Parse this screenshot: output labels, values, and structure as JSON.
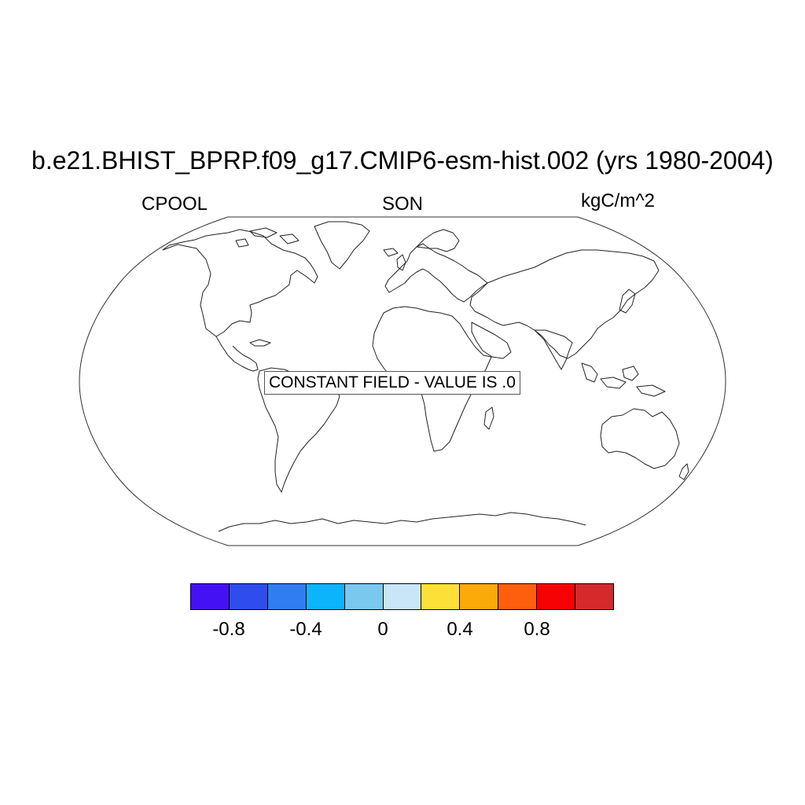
{
  "title": "b.e21.BHIST_BPRP.f09_g17.CMIP6-esm-hist.002 (yrs 1980-2004)",
  "left_label": "CPOOL",
  "center_label": "SON",
  "right_label": "kgC/m^2",
  "map": {
    "projection": "Robinson",
    "field_message": "CONSTANT FIELD - VALUE IS .0",
    "field_value": 0
  },
  "colorbar": {
    "colors": [
      "#4411f5",
      "#2f4ded",
      "#2f7df0",
      "#0bb4fb",
      "#7bc8ef",
      "#c8e6f7",
      "#fde037",
      "#fca90a",
      "#fe5f0c",
      "#f60203",
      "#d52a2c"
    ],
    "boundaries": [
      -1.0,
      -0.8,
      -0.6,
      -0.4,
      -0.2,
      0.0,
      0.2,
      0.4,
      0.6,
      0.8,
      1.0
    ],
    "tick_labels": [
      "-0.8",
      "-0.4",
      "0",
      "0.4",
      "0.8"
    ]
  }
}
